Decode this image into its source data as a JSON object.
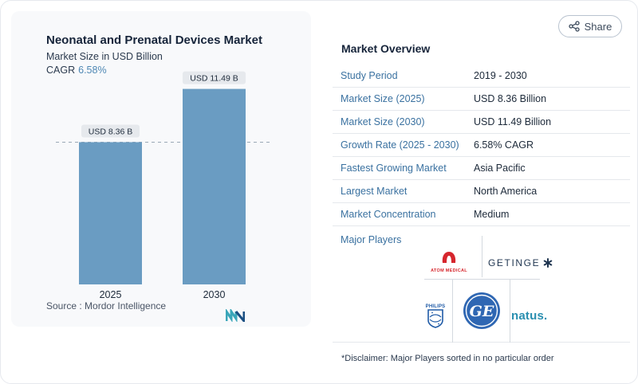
{
  "share": {
    "label": "Share",
    "icon": "share-icon"
  },
  "chart": {
    "title": "Neonatal and Prenatal Devices Market",
    "subtitle": "Market Size in USD Billion",
    "cagr_label": "CAGR",
    "cagr_value": "6.58%",
    "source": "Source :  Mordor Intelligence"
  },
  "chart_data": {
    "type": "bar",
    "categories": [
      "2025",
      "2030"
    ],
    "values": [
      8.36,
      11.49
    ],
    "data_labels": [
      "USD 8.36 B",
      "USD 11.49 B"
    ],
    "title": "Neonatal and Prenatal Devices Market",
    "xlabel": "",
    "ylabel": "Market Size in USD Billion",
    "ylim": [
      0,
      14.14
    ],
    "bar_color": "#6a9cc2",
    "reference_line": "dashed, at 2025 value",
    "grid": false
  },
  "overview": {
    "title": "Market Overview",
    "rows": [
      {
        "key": "Study Period",
        "value": "2019 - 2030"
      },
      {
        "key": "Market Size (2025)",
        "value": "USD 8.36 Billion"
      },
      {
        "key": "Market Size (2030)",
        "value": "USD 11.49 Billion"
      },
      {
        "key": "Growth Rate (2025 - 2030)",
        "value": "6.58% CAGR"
      },
      {
        "key": "Fastest Growing Market",
        "value": "Asia Pacific"
      },
      {
        "key": "Largest Market",
        "value": "North America"
      },
      {
        "key": "Market Concentration",
        "value": "Medium"
      }
    ],
    "players_label": "Major Players",
    "players": {
      "atom": "ATOM MEDICAL",
      "getinge": "GETINGE",
      "philips": "PHILIPS",
      "ge": "GE",
      "natus": "natus."
    }
  },
  "disclaimer": "*Disclaimer: Major Players sorted in no particular order"
}
